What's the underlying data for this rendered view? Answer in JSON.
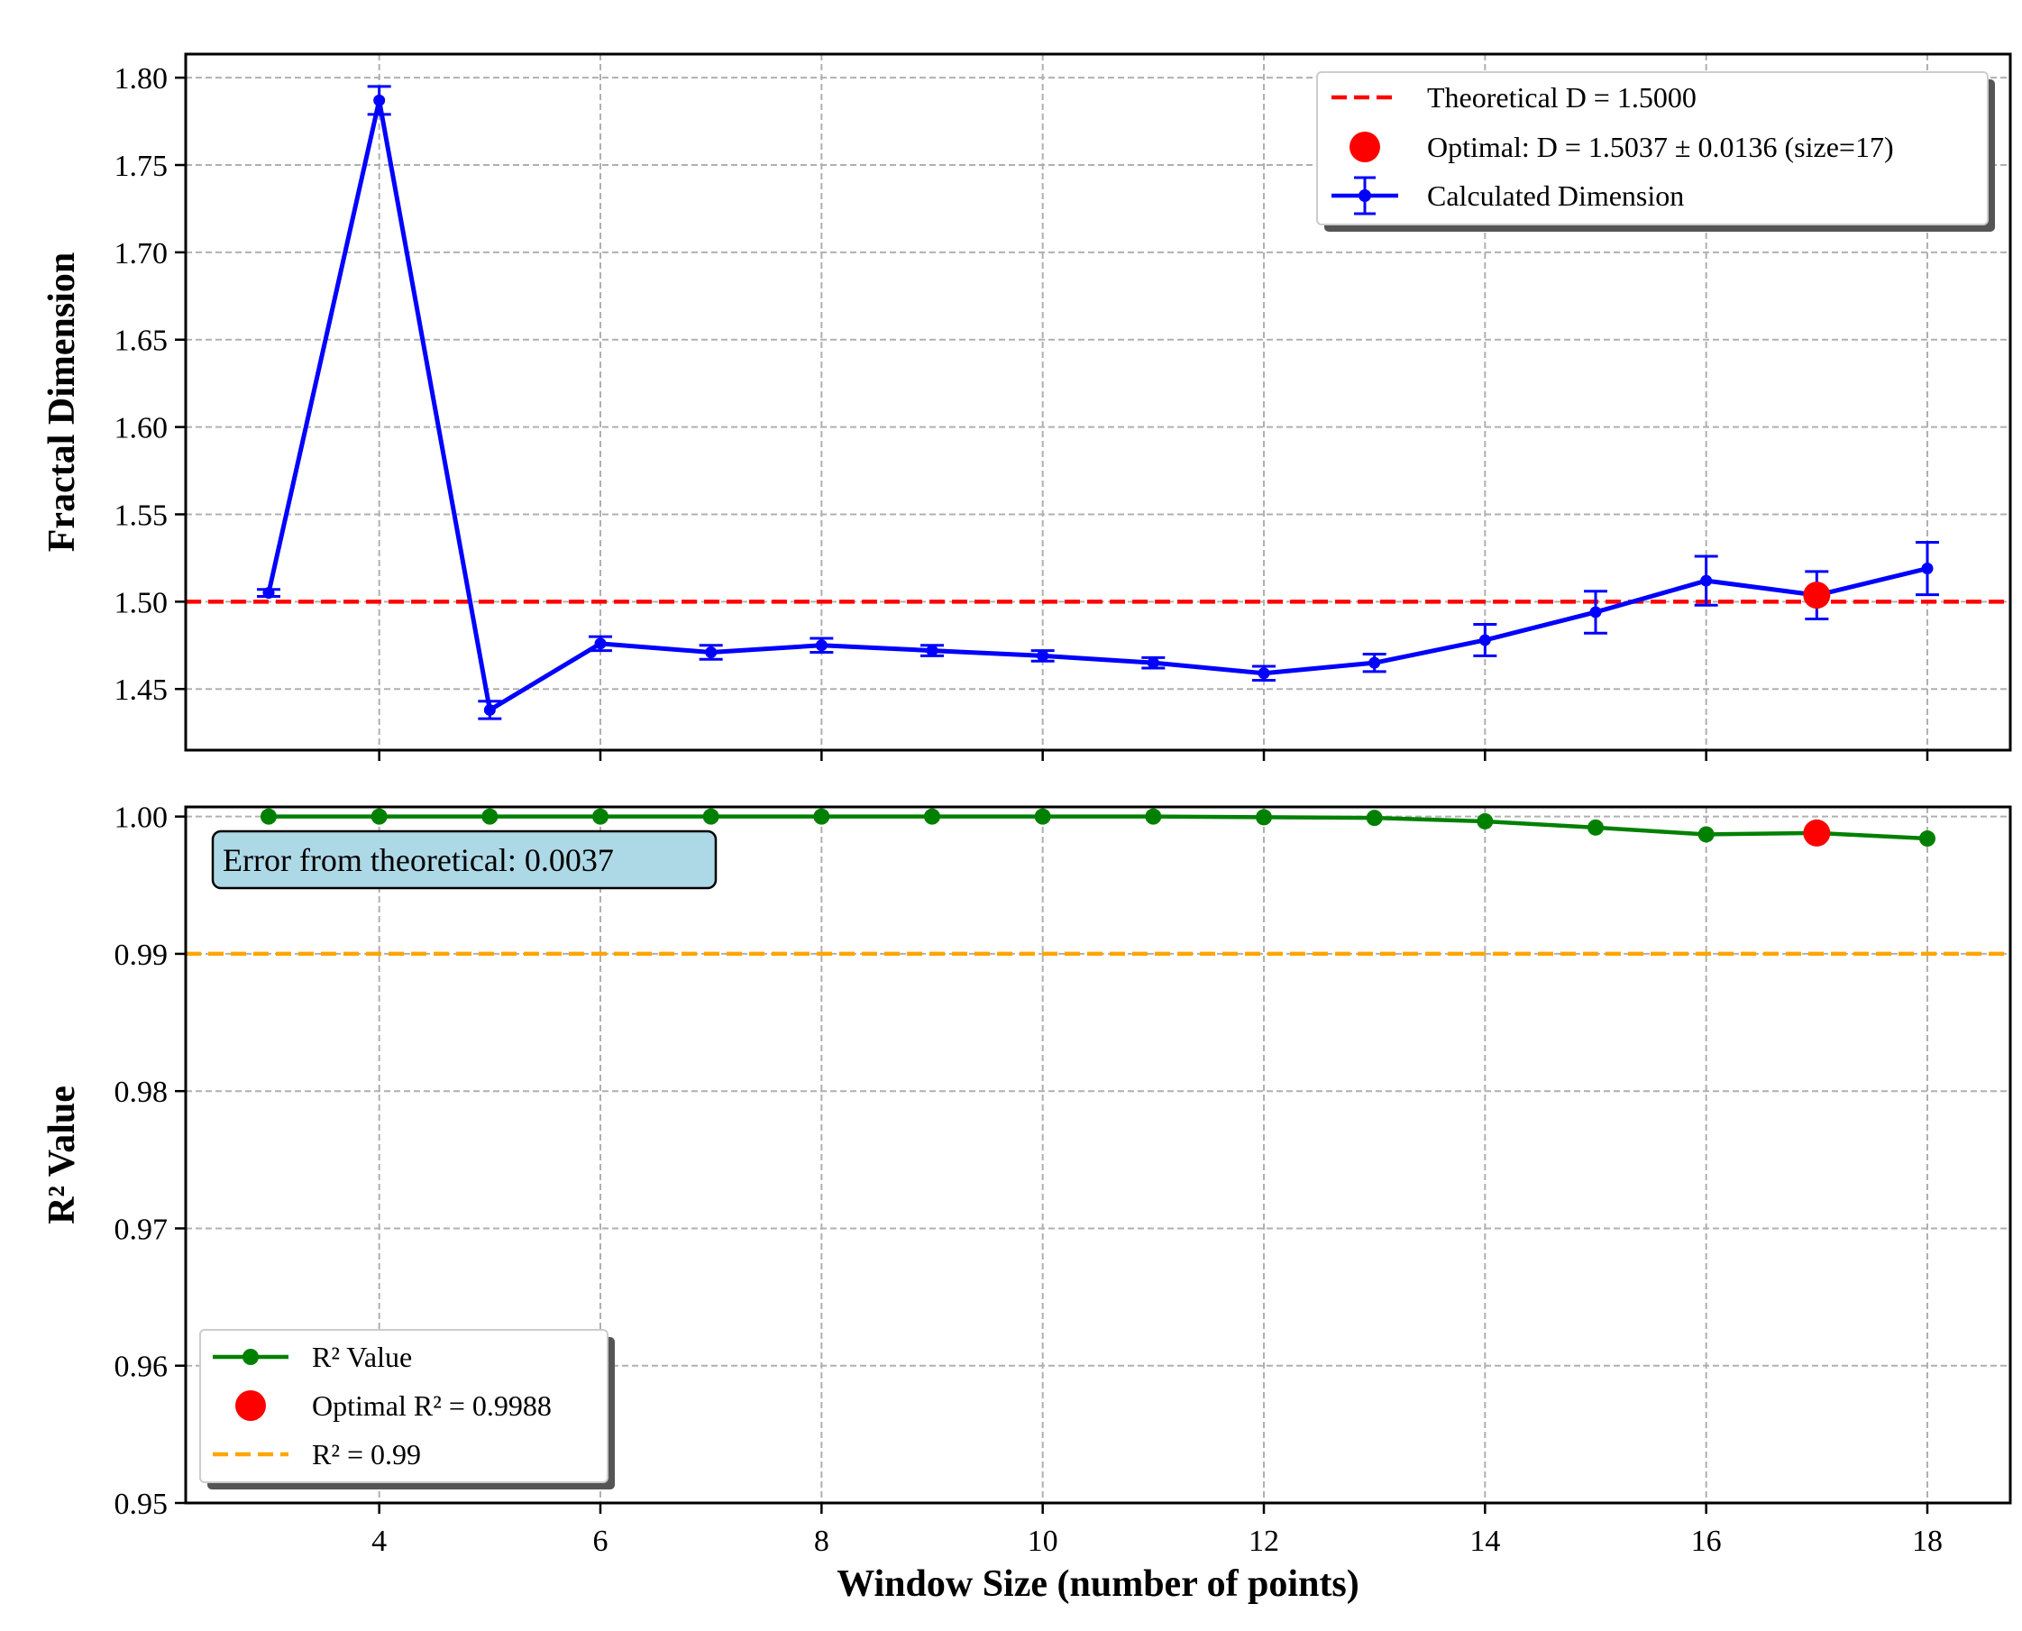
{
  "chart_data": [
    {
      "type": "line",
      "xlabel": "",
      "ylabel": "Fractal Dimension",
      "xlim": [
        2.25,
        18.75
      ],
      "ylim": [
        1.415,
        1.8135
      ],
      "xticks": [
        4,
        6,
        8,
        10,
        12,
        14,
        16,
        18
      ],
      "xtick_labels_shown": false,
      "yticks": [
        1.45,
        1.5,
        1.55,
        1.6,
        1.65,
        1.7,
        1.75,
        1.8
      ],
      "ytick_labels": [
        "1.45",
        "1.50",
        "1.55",
        "1.60",
        "1.65",
        "1.70",
        "1.75",
        "1.80"
      ],
      "grid": true,
      "legend_position": "upper right",
      "series": [
        {
          "name": "Calculated Dimension",
          "color": "#0000ff",
          "marker": "circle",
          "x": [
            3,
            4,
            5,
            6,
            7,
            8,
            9,
            10,
            11,
            12,
            13,
            14,
            15,
            16,
            17,
            18
          ],
          "y": [
            1.505,
            1.787,
            1.438,
            1.476,
            1.471,
            1.475,
            1.472,
            1.469,
            1.465,
            1.459,
            1.465,
            1.478,
            1.494,
            1.512,
            1.5037,
            1.519
          ],
          "error": [
            0.002,
            0.008,
            0.005,
            0.004,
            0.004,
            0.004,
            0.003,
            0.003,
            0.003,
            0.004,
            0.005,
            0.009,
            0.012,
            0.014,
            0.0136,
            0.015
          ]
        }
      ],
      "reference_line": {
        "name": "Theoretical D = 1.5000",
        "y": 1.5,
        "color": "#ff0000",
        "style": "dashed"
      },
      "highlight_point": {
        "name": "Optimal: D = 1.5037 ± 0.0136 (size=17)",
        "x": 17,
        "y": 1.5037,
        "color": "#ff0000"
      }
    },
    {
      "type": "line",
      "xlabel": "Window Size (number of points)",
      "ylabel": "R² Value",
      "xlim": [
        2.25,
        18.75
      ],
      "ylim": [
        0.95,
        1.0007
      ],
      "xticks": [
        4,
        6,
        8,
        10,
        12,
        14,
        16,
        18
      ],
      "xtick_labels": [
        "4",
        "6",
        "8",
        "10",
        "12",
        "14",
        "16",
        "18"
      ],
      "yticks": [
        0.95,
        0.96,
        0.97,
        0.98,
        0.99,
        1.0
      ],
      "ytick_labels": [
        "0.95",
        "0.96",
        "0.97",
        "0.98",
        "0.99",
        "1.00"
      ],
      "grid": true,
      "legend_position": "lower left",
      "series": [
        {
          "name": "R² Value",
          "color": "#008000",
          "marker": "circle",
          "x": [
            3,
            4,
            5,
            6,
            7,
            8,
            9,
            10,
            11,
            12,
            13,
            14,
            15,
            16,
            17,
            18
          ],
          "y": [
            1.0,
            1.0,
            1.0,
            1.0,
            1.0,
            1.0,
            1.0,
            1.0,
            1.0,
            0.99995,
            0.9999,
            0.99965,
            0.9992,
            0.9987,
            0.9988,
            0.9984
          ]
        }
      ],
      "reference_line": {
        "name": "R² = 0.99",
        "y": 0.99,
        "color": "#ffa500",
        "style": "dashed"
      },
      "highlight_point": {
        "name": "Optimal R² = 0.9988",
        "x": 17,
        "y": 0.9988,
        "color": "#ff0000"
      },
      "annotation": {
        "text": "Error from theoretical: 0.0037",
        "box_color": "#add8e6"
      }
    }
  ]
}
